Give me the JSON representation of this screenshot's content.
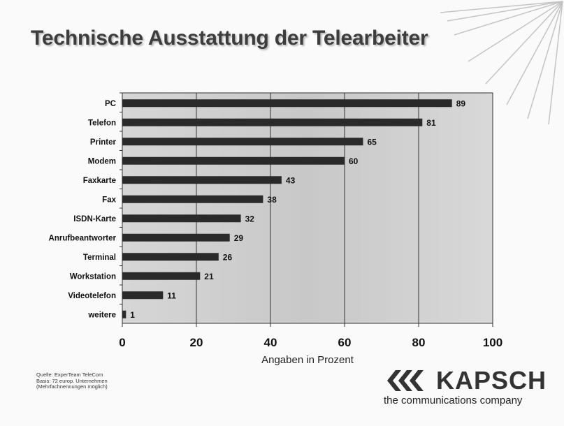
{
  "slide": {
    "title": "Technische Ausstattung der Telearbeiter",
    "source_lines": [
      "Quelle: ExperTeam TeleCom",
      "Basis: 72 europ. Unternehmen",
      "(Mehrfachnennungen möglich)"
    ]
  },
  "logo": {
    "name": "KAPSCH",
    "tagline": "the communications company"
  },
  "chart_data": {
    "type": "bar",
    "orientation": "horizontal",
    "categories": [
      "PC",
      "Telefon",
      "Printer",
      "Modem",
      "Faxkarte",
      "Fax",
      "ISDN-Karte",
      "Anrufbeantworter",
      "Terminal",
      "Workstation",
      "Videotelefon",
      "weitere"
    ],
    "values": [
      89,
      81,
      65,
      60,
      43,
      38,
      32,
      29,
      26,
      21,
      11,
      1
    ],
    "value_labels": [
      "89",
      "81",
      "65",
      "60",
      "43",
      "38",
      "32",
      "29",
      "26",
      "21",
      "11",
      "1"
    ],
    "xlabel": "Angaben in Prozent",
    "xlim": [
      0,
      100
    ],
    "x_ticks": [
      0,
      20,
      40,
      60,
      80,
      100
    ],
    "x_tick_labels": [
      "0",
      "20",
      "40",
      "60",
      "80",
      "100"
    ],
    "grid": "vertical",
    "bar_color": "#2a2a2a",
    "plot_background": "#cfcfcf"
  }
}
